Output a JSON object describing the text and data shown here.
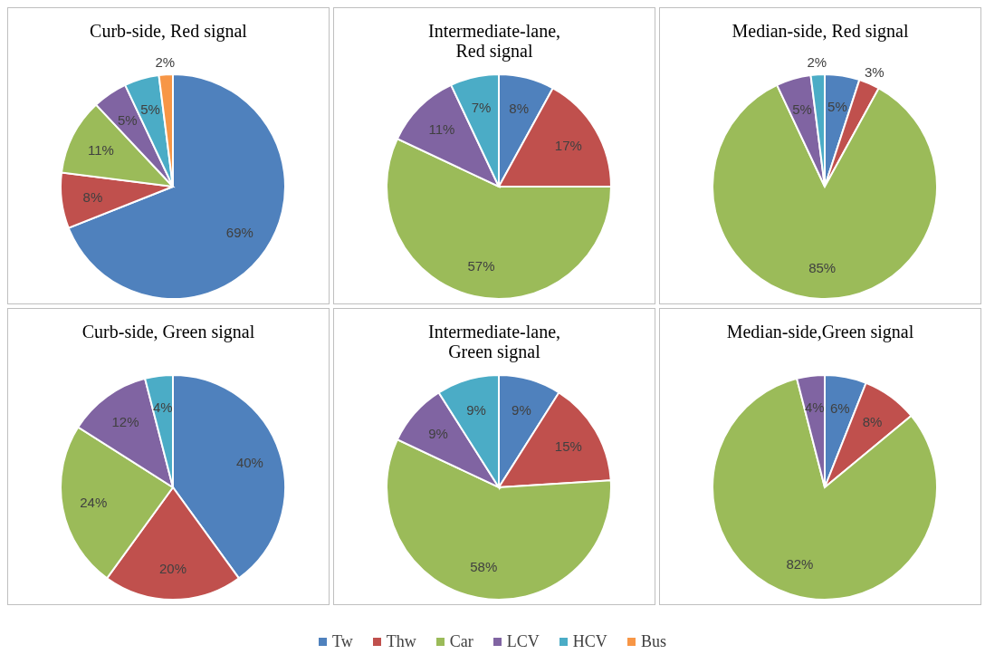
{
  "chart_data": [
    {
      "type": "pie",
      "title": "Curb-side, Red signal",
      "categories": [
        "Tw",
        "Thw",
        "Car",
        "LCV",
        "HCV",
        "Bus"
      ],
      "values": [
        69,
        8,
        11,
        5,
        5,
        2
      ],
      "value_labels": [
        "69%",
        "8%",
        "11%",
        "5%",
        "5%",
        "2%"
      ],
      "colors": [
        "#4f81bd",
        "#c0504d",
        "#9bbb59",
        "#8064a2",
        "#4bacc6",
        "#f79646"
      ],
      "legend": "bottom"
    },
    {
      "type": "pie",
      "title": "Intermediate-lane,\nRed signal",
      "categories": [
        null,
        null,
        null,
        null,
        null
      ],
      "values": [
        8,
        17,
        57,
        11,
        7
      ],
      "value_labels": [
        "8%",
        "17%",
        "57%",
        "11%",
        "7%"
      ],
      "colors": [
        "#4f81bd",
        "#c0504d",
        "#9bbb59",
        "#8064a2",
        "#4bacc6"
      ]
    },
    {
      "type": "pie",
      "title": "Median-side, Red signal",
      "categories": [
        null,
        null,
        null,
        null,
        null
      ],
      "values": [
        5,
        3,
        85,
        5,
        2
      ],
      "value_labels": [
        "5%",
        "3%",
        "85%",
        "5%",
        "2%"
      ],
      "colors": [
        "#4f81bd",
        "#c0504d",
        "#9bbb59",
        "#8064a2",
        "#4bacc6"
      ]
    },
    {
      "type": "pie",
      "title": "Curb-side, Green signal",
      "categories": [
        null,
        null,
        null,
        null,
        null
      ],
      "values": [
        40,
        20,
        24,
        12,
        4
      ],
      "value_labels": [
        "40%",
        "20%",
        "24%",
        "12%",
        "4%"
      ],
      "colors": [
        "#4f81bd",
        "#c0504d",
        "#9bbb59",
        "#8064a2",
        "#4bacc6"
      ]
    },
    {
      "type": "pie",
      "title": "Intermediate-lane,\nGreen signal",
      "categories": [
        null,
        null,
        null,
        null,
        null
      ],
      "values": [
        9,
        15,
        58,
        9,
        9
      ],
      "value_labels": [
        "9%",
        "15%",
        "58%",
        "9%",
        "9%"
      ],
      "colors": [
        "#4f81bd",
        "#c0504d",
        "#9bbb59",
        "#8064a2",
        "#4bacc6"
      ]
    },
    {
      "type": "pie",
      "title": "Median-side,Green signal",
      "categories": [
        null,
        null,
        null,
        null
      ],
      "values": [
        6,
        8,
        82,
        4
      ],
      "value_labels": [
        "6%",
        "8%",
        "82%",
        "4%"
      ],
      "colors": [
        "#4f81bd",
        "#c0504d",
        "#9bbb59",
        "#8064a2"
      ]
    }
  ]
}
